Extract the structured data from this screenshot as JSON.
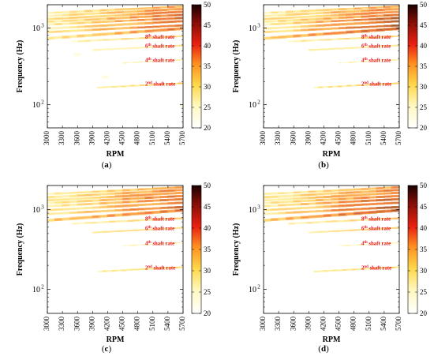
{
  "chart_data": [
    {
      "type": "heatmap",
      "caption": "(a)",
      "xlabel": "RPM",
      "ylabel": "Frequency (Hz)",
      "x_ticks": [
        "3000",
        "3300",
        "3600",
        "3900",
        "4200",
        "4500",
        "4800",
        "5100",
        "5400",
        "5700"
      ],
      "xlim": [
        3000,
        5700
      ],
      "ylim": [
        50,
        2000
      ],
      "y_scale": "log",
      "y_ticks": [
        {
          "value": 100,
          "label": "10",
          "exp": "2"
        },
        {
          "value": 1000,
          "label": "10",
          "exp": "3"
        }
      ],
      "colorbar": {
        "min": 20,
        "max": 50,
        "ticks": [
          "50",
          "45",
          "40",
          "35",
          "30",
          "25",
          "20"
        ]
      },
      "annotations": [
        {
          "order": "8",
          "suffix": "th",
          "text": "shaft rate",
          "y": 780
        },
        {
          "order": "6",
          "suffix": "th",
          "text": "shaft rate",
          "y": 590
        },
        {
          "order": "4",
          "suffix": "th",
          "text": "shaft rate",
          "y": 385
        },
        {
          "order": "2",
          "suffix": "nd",
          "text": "shaft rate",
          "y": 190
        }
      ],
      "variant": 0
    },
    {
      "type": "heatmap",
      "caption": "(b)",
      "xlabel": "RPM",
      "ylabel": "Frequency (Hz)",
      "x_ticks": [
        "3000",
        "3300",
        "3600",
        "3900",
        "4200",
        "4500",
        "4800",
        "5100",
        "5400",
        "5700"
      ],
      "xlim": [
        3000,
        5700
      ],
      "ylim": [
        50,
        2000
      ],
      "y_scale": "log",
      "y_ticks": [
        {
          "value": 100,
          "label": "10",
          "exp": "2"
        },
        {
          "value": 1000,
          "label": "10",
          "exp": "3"
        }
      ],
      "colorbar": {
        "min": 20,
        "max": 50,
        "ticks": [
          "50",
          "45",
          "40",
          "35",
          "30",
          "25",
          "20"
        ]
      },
      "annotations": [
        {
          "order": "8",
          "suffix": "th",
          "text": "shaft rate",
          "y": 780
        },
        {
          "order": "6",
          "suffix": "th",
          "text": "shaft rate",
          "y": 590
        },
        {
          "order": "4",
          "suffix": "th",
          "text": "shaft rate",
          "y": 385
        },
        {
          "order": "2",
          "suffix": "nd",
          "text": "shaft rate",
          "y": 190
        }
      ],
      "variant": 1
    },
    {
      "type": "heatmap",
      "caption": "(c)",
      "xlabel": "RPM",
      "ylabel": "Frequency (Hz)",
      "x_ticks": [
        "3000",
        "3300",
        "3600",
        "3900",
        "4200",
        "4500",
        "4800",
        "5100",
        "5400",
        "5700"
      ],
      "xlim": [
        3000,
        5700
      ],
      "ylim": [
        50,
        2000
      ],
      "y_scale": "log",
      "y_ticks": [
        {
          "value": 100,
          "label": "10",
          "exp": "2"
        },
        {
          "value": 1000,
          "label": "10",
          "exp": "3"
        }
      ],
      "colorbar": {
        "min": 20,
        "max": 50,
        "ticks": [
          "50",
          "45",
          "40",
          "35",
          "30",
          "25",
          "20"
        ]
      },
      "annotations": [
        {
          "order": "8",
          "suffix": "th",
          "text": "shaft rate",
          "y": 780
        },
        {
          "order": "6",
          "suffix": "th",
          "text": "shaft rate",
          "y": 590
        },
        {
          "order": "4",
          "suffix": "th",
          "text": "shaft rate",
          "y": 385
        },
        {
          "order": "2",
          "suffix": "nd",
          "text": "shaft rate",
          "y": 190
        }
      ],
      "variant": 2
    },
    {
      "type": "heatmap",
      "caption": "(d)",
      "xlabel": "RPM",
      "ylabel": "Frequency (Hz)",
      "x_ticks": [
        "3000",
        "3300",
        "3600",
        "3900",
        "4200",
        "4500",
        "4800",
        "5100",
        "5400",
        "5700"
      ],
      "xlim": [
        3000,
        5700
      ],
      "ylim": [
        50,
        2000
      ],
      "y_scale": "log",
      "y_ticks": [
        {
          "value": 100,
          "label": "10",
          "exp": "2"
        },
        {
          "value": 1000,
          "label": "10",
          "exp": "3"
        }
      ],
      "colorbar": {
        "min": 20,
        "max": 50,
        "ticks": [
          "50",
          "45",
          "40",
          "35",
          "30",
          "25",
          "20"
        ]
      },
      "annotations": [
        {
          "order": "8",
          "suffix": "th",
          "text": "shaft rate",
          "y": 780
        },
        {
          "order": "6",
          "suffix": "th",
          "text": "shaft rate",
          "y": 590
        },
        {
          "order": "4",
          "suffix": "th",
          "text": "shaft rate",
          "y": 385
        },
        {
          "order": "2",
          "suffix": "nd",
          "text": "shaft rate",
          "y": 190
        }
      ],
      "variant": 3
    }
  ],
  "colors": {
    "annotation": "#e8141e",
    "axis": "#000000"
  }
}
